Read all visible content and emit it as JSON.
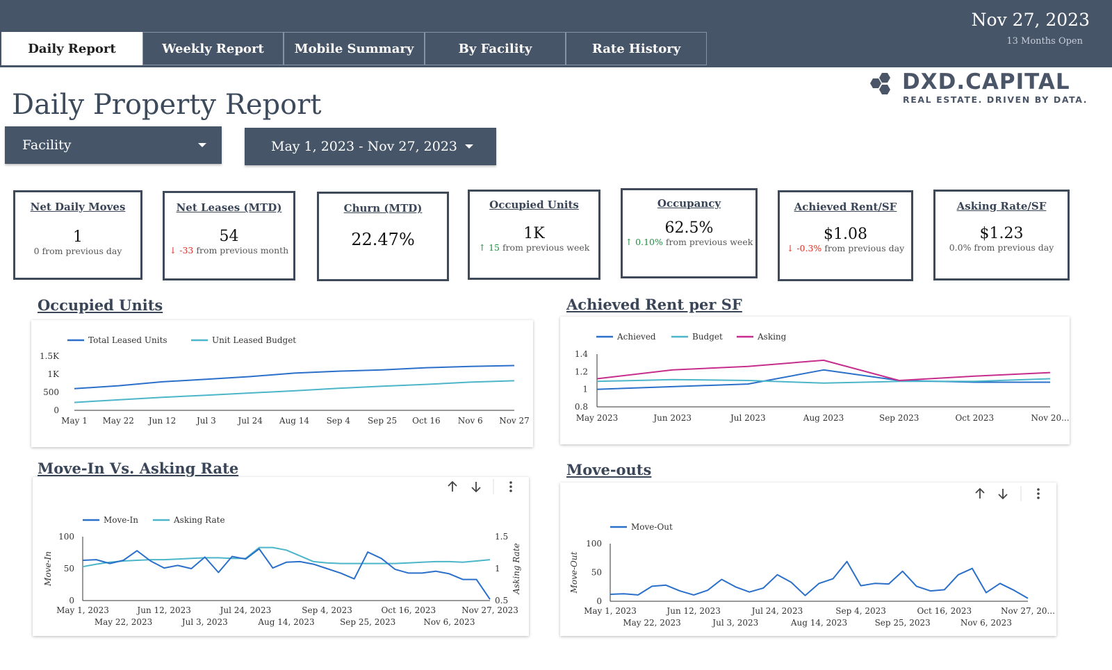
{
  "tabs": [
    {
      "label": "Daily Report"
    },
    {
      "label": "Weekly Report"
    },
    {
      "label": "Mobile Summary"
    },
    {
      "label": "By Facility"
    },
    {
      "label": "Rate History"
    }
  ],
  "header": {
    "date": "Nov 27, 2023",
    "months_open": "13 Months Open"
  },
  "logo": {
    "name": "DXD.CAPITAL",
    "tagline": "REAL ESTATE. DRIVEN BY DATA."
  },
  "page_title": "Daily Property Report",
  "filters": {
    "facility": "Facility",
    "date_range": "May 1, 2023 - Nov 27, 2023"
  },
  "colors": {
    "header": "#475569",
    "blue": "#2a6fc9",
    "teal": "#4bb5c9",
    "pink": "#c62d8c"
  },
  "kpis": [
    {
      "title": "Net Daily Moves",
      "value": "1",
      "arrow": "",
      "change": "",
      "suffix": "0 from previous day"
    },
    {
      "title": "Net Leases (MTD)",
      "value": "54",
      "arrow": "↓",
      "change": "-33",
      "suffix": " from previous month"
    },
    {
      "title": "Churn (MTD)",
      "value": "22.47%",
      "arrow": "",
      "change": "",
      "suffix": ""
    },
    {
      "title": "Occupied Units",
      "value": "1K",
      "arrow": "↑",
      "change": "15",
      "suffix": " from previous week"
    },
    {
      "title": "Occupancy",
      "value": "62.5%",
      "arrow": "↑",
      "change": "0.10%",
      "suffix": " from previous week"
    },
    {
      "title": "Achieved Rent/SF",
      "value": "$1.08",
      "arrow": "↓",
      "change": "-0.3%",
      "suffix": " from previous day"
    },
    {
      "title": "Asking Rate/SF",
      "value": "$1.23",
      "arrow": "",
      "change": "",
      "suffix": "0.0% from previous day"
    }
  ],
  "sections": {
    "occupied_units": "Occupied Units",
    "achieved_rent": "Achieved Rent per SF",
    "move_in": "Move-In Vs. Asking Rate",
    "move_outs": "Move-outs"
  },
  "chart_data": [
    {
      "id": "occupied",
      "type": "line",
      "title": "Occupied Units",
      "categories": [
        "May 1",
        "May 22",
        "Jun 12",
        "Jul 3",
        "Jul 24",
        "Aug 14",
        "Sep 4",
        "Sep 25",
        "Oct 16",
        "Nov 6",
        "Nov 27"
      ],
      "yticks": [
        "0",
        "500",
        "1K",
        "1.5K"
      ],
      "ylim": [
        0,
        1500
      ],
      "series": [
        {
          "name": "Total Leased Units",
          "color": "#2a6fc9",
          "values": [
            600,
            680,
            790,
            860,
            935,
            1030,
            1085,
            1120,
            1180,
            1215,
            1240
          ]
        },
        {
          "name": "Unit Leased Budget",
          "color": "#4bb5c9",
          "values": [
            220,
            290,
            360,
            420,
            480,
            540,
            610,
            670,
            720,
            780,
            820
          ]
        }
      ]
    },
    {
      "id": "rent",
      "type": "line",
      "title": "Achieved Rent per SF",
      "categories": [
        "May 2023",
        "Jun 2023",
        "Jul 2023",
        "Aug 2023",
        "Sep 2023",
        "Oct 2023",
        "Nov 20..."
      ],
      "yticks": [
        "0.8",
        "1",
        "1.2",
        "1.4"
      ],
      "ylim": [
        0.8,
        1.4
      ],
      "series": [
        {
          "name": "Achieved",
          "color": "#2a6fc9",
          "values": [
            1.0,
            1.03,
            1.06,
            1.22,
            1.1,
            1.08,
            1.08
          ]
        },
        {
          "name": "Budget",
          "color": "#4bb5c9",
          "values": [
            1.09,
            1.11,
            1.1,
            1.07,
            1.09,
            1.09,
            1.12
          ]
        },
        {
          "name": "Asking",
          "color": "#c62d8c",
          "values": [
            1.12,
            1.22,
            1.26,
            1.33,
            1.1,
            1.15,
            1.19
          ]
        }
      ]
    },
    {
      "id": "movein",
      "type": "line",
      "title": "Move-In Vs. Asking Rate",
      "x_top": [
        "May 1, 2023",
        "Jun 12, 2023",
        "Jul 24, 2023",
        "Sep 4, 2023",
        "Oct 16, 2023",
        "Nov 27, 2023"
      ],
      "x_bottom": [
        "May 22, 2023",
        "Jul 3, 2023",
        "Aug 14, 2023",
        "Sep 25, 2023",
        "Nov 6, 2023"
      ],
      "ylabel": "Move-In",
      "y2label": "Asking Rate",
      "yticks": [
        "0",
        "50",
        "100"
      ],
      "y2ticks": [
        "0.5",
        "1",
        "1.5"
      ],
      "ylim": [
        0,
        100
      ],
      "y2lim": [
        0.5,
        1.5
      ],
      "series": [
        {
          "name": "Move-In",
          "color": "#2a6fc9",
          "axis": "left",
          "values": [
            63,
            64,
            58,
            63,
            78,
            62,
            51,
            55,
            50,
            68,
            44,
            69,
            65,
            81,
            51,
            60,
            61,
            57,
            50,
            43,
            34,
            76,
            66,
            49,
            43,
            43,
            46,
            42,
            33,
            33,
            2
          ]
        },
        {
          "name": "Asking Rate",
          "color": "#4bb5c9",
          "axis": "right",
          "values": [
            1.03,
            1.07,
            1.1,
            1.12,
            1.13,
            1.14,
            1.14,
            1.15,
            1.16,
            1.17,
            1.17,
            1.16,
            1.16,
            1.33,
            1.33,
            1.29,
            1.2,
            1.11,
            1.09,
            1.08,
            1.08,
            1.08,
            1.08,
            1.08,
            1.09,
            1.1,
            1.11,
            1.11,
            1.1,
            1.12,
            1.14
          ]
        }
      ]
    },
    {
      "id": "moveout",
      "type": "line",
      "title": "Move-outs",
      "x_top": [
        "May 1, 2023",
        "Jun 12, 2023",
        "Jul 24, 2023",
        "Sep 4, 2023",
        "Oct 16, 2023",
        "Nov 27, 20..."
      ],
      "x_bottom": [
        "May 22, 2023",
        "Jul 3, 2023",
        "Aug 14, 2023",
        "Sep 25, 2023",
        "Nov 6, 2023"
      ],
      "ylabel": "Move-Out",
      "yticks": [
        "0",
        "50",
        "100"
      ],
      "ylim": [
        0,
        100
      ],
      "series": [
        {
          "name": "Move-Out",
          "color": "#2a6fc9",
          "values": [
            12,
            13,
            11,
            26,
            28,
            18,
            11,
            19,
            38,
            25,
            16,
            23,
            46,
            33,
            10,
            31,
            39,
            69,
            27,
            31,
            30,
            52,
            26,
            18,
            20,
            46,
            57,
            15,
            31,
            19,
            5
          ]
        }
      ]
    }
  ]
}
